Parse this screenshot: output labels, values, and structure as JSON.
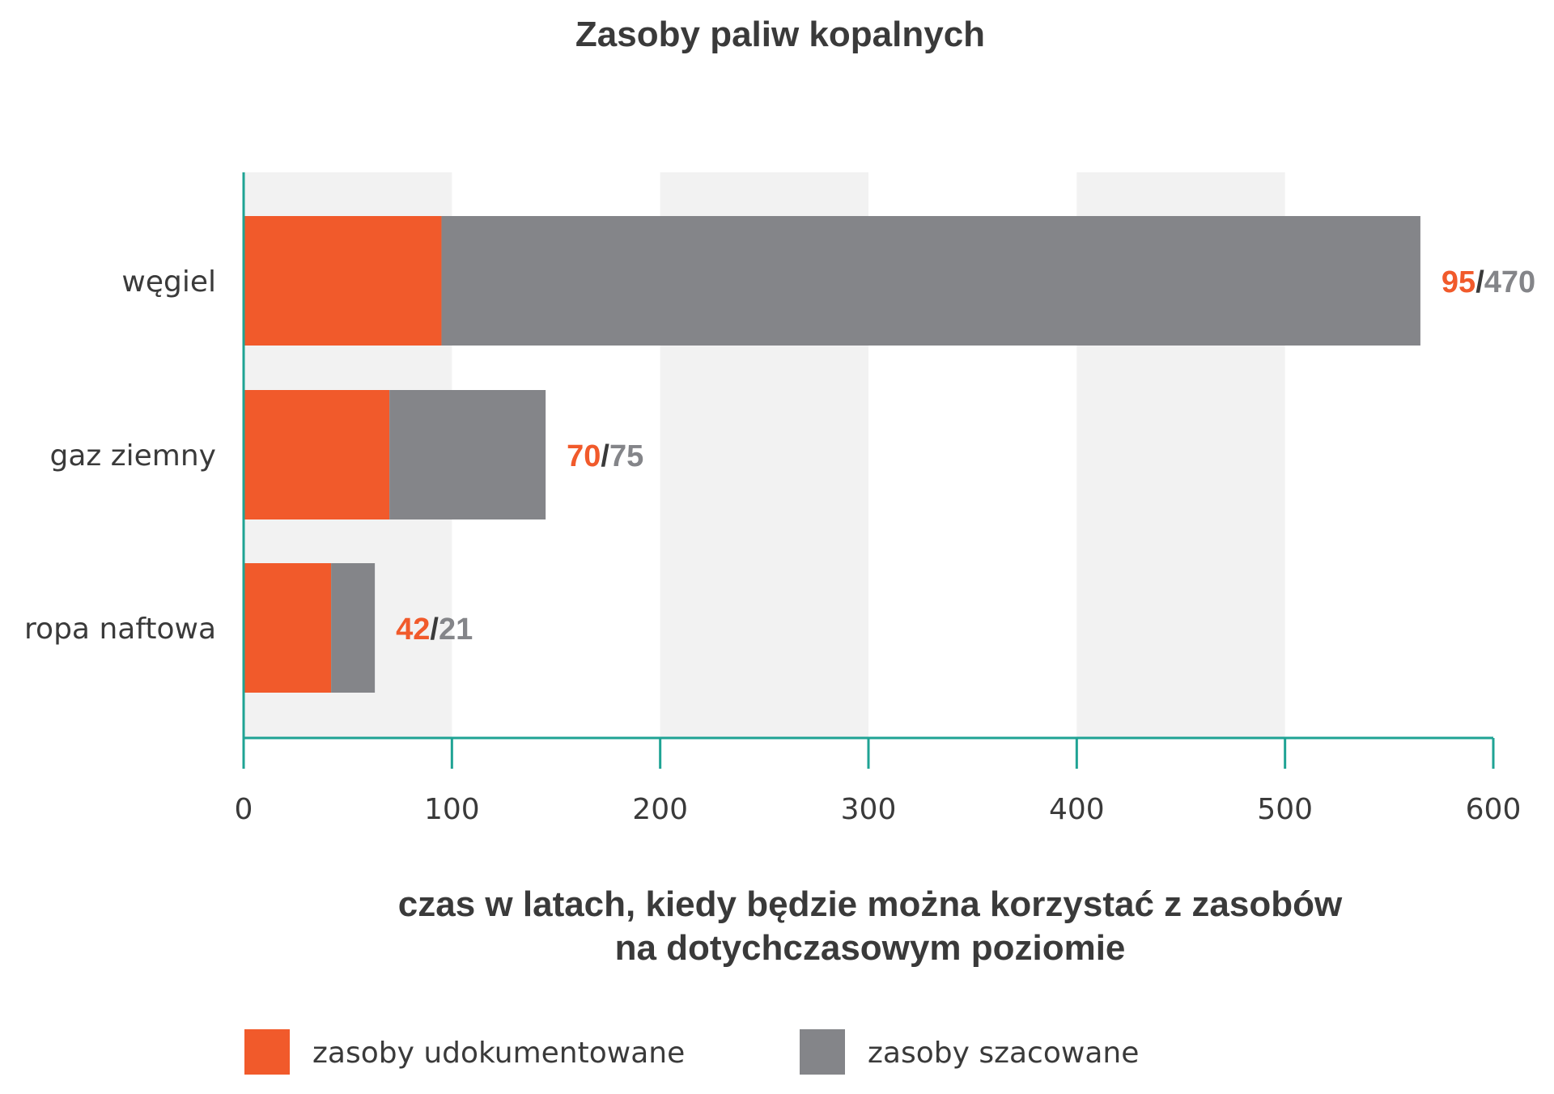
{
  "chart_data": {
    "type": "bar",
    "orientation": "horizontal",
    "stacked": true,
    "title": "Zasoby paliw kopalnych",
    "xlabel_lines": [
      "czas w latach, kiedy będzie można korzystać z zasobów",
      "na dotychczasowym poziomie"
    ],
    "categories": [
      "węgiel",
      "gaz ziemny",
      "ropa naftowa"
    ],
    "series": [
      {
        "name": "zasoby udokumentowane",
        "color": "#f15a2b",
        "values": [
          95,
          70,
          42
        ]
      },
      {
        "name": "zasoby szacowane",
        "color": "#848589",
        "values": [
          470,
          75,
          21
        ]
      }
    ],
    "value_labels": [
      {
        "documented": "95",
        "separator": "/",
        "estimated": "470"
      },
      {
        "documented": "70",
        "separator": "/",
        "estimated": "75"
      },
      {
        "documented": "42",
        "separator": "/",
        "estimated": "21"
      }
    ],
    "xlim": [
      0,
      600
    ],
    "xticks": [
      0,
      100,
      200,
      300,
      400,
      500,
      600
    ],
    "xtick_labels": [
      "0",
      "100",
      "200",
      "300",
      "400",
      "500",
      "600"
    ],
    "grid": "alternating vertical bands",
    "band_color": "#f2f2f2",
    "axis_color": "#1fa394",
    "separator_color": "#3a3a3a",
    "legend_position": "bottom-left"
  }
}
